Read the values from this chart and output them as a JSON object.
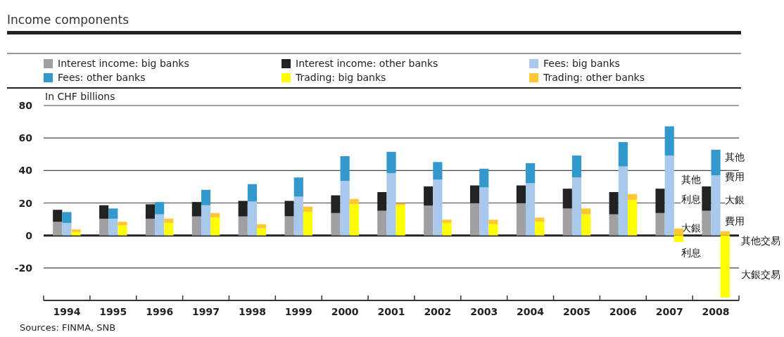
{
  "chart_data": [
    {
      "type": "bar",
      "title": "Income components",
      "ylabel": "In CHF billions",
      "grid": "y",
      "legend": "top",
      "stacked": true,
      "categories": [
        "1994",
        "1995",
        "1996",
        "1997",
        "1998",
        "1999",
        "2000",
        "2001",
        "2002",
        "2003",
        "2004",
        "2005",
        "2006",
        "2007",
        "2008"
      ],
      "ylim": [
        -40,
        80
      ],
      "yticks": [
        -20,
        0,
        20,
        40,
        60,
        80
      ],
      "series": [
        {
          "name": "Interest income: big banks",
          "color": "#a09fa4",
          "values": [
            8.4,
            10.3,
            10.3,
            11.7,
            11.7,
            11.8,
            13.8,
            15.2,
            18.4,
            19.9,
            19.9,
            16.6,
            13.0,
            13.8,
            15.2
          ]
        },
        {
          "name": "Interest income: other banks",
          "color": "#222222",
          "values": [
            7.4,
            8.3,
            8.9,
            8.9,
            9.6,
            9.5,
            10.9,
            11.5,
            11.8,
            10.9,
            10.9,
            12.2,
            13.7,
            15.0,
            15.0
          ]
        }
      ],
      "annotations": [
        "其他",
        "利息",
        "大銀",
        "利息",
        "其他",
        "費用",
        "大銀",
        "費用",
        "其他交易",
        "大銀交易",
        "Sources: FINMA, SNB"
      ]
    },
    {
      "type": "bar",
      "legend": "top",
      "stacked": true,
      "tick_labels": false,
      "categories": [
        "1994",
        "1995",
        "1996",
        "1997",
        "1998",
        "1999",
        "2000",
        "2001",
        "2002",
        "2003",
        "2004",
        "2005",
        "2006",
        "2007",
        "2008"
      ],
      "ylim": [
        -40,
        80
      ],
      "series": [
        {
          "name": "Fees: big banks",
          "color": "#a8c8ec",
          "values": [
            7.7,
            10.3,
            13.0,
            18.6,
            20.9,
            23.9,
            33.6,
            38.3,
            34.4,
            29.6,
            32.2,
            35.7,
            42.5,
            49.2,
            37.0
          ]
        },
        {
          "name": "Fees: other banks",
          "color": "#3399cc",
          "values": [
            6.7,
            6.3,
            7.6,
            9.5,
            10.7,
            11.8,
            15.2,
            13.2,
            10.8,
            11.5,
            12.3,
            13.5,
            15.0,
            18.0,
            15.8
          ]
        }
      ]
    },
    {
      "type": "bar",
      "legend": "top",
      "stacked": true,
      "tick_labels": false,
      "categories": [
        "1994",
        "1995",
        "1996",
        "1997",
        "1998",
        "1999",
        "2000",
        "2001",
        "2002",
        "2003",
        "2004",
        "2005",
        "2006",
        "2007",
        "2008"
      ],
      "ylim": [
        -40,
        80
      ],
      "series": [
        {
          "name": "Trading: big banks",
          "color": "#ffff00",
          "values": [
            2.1,
            6.1,
            7.7,
            11.0,
            4.3,
            14.6,
            19.2,
            18.6,
            7.7,
            6.9,
            8.3,
            13.0,
            21.9,
            -4.0,
            -38.2
          ]
        },
        {
          "name": "Trading: other banks",
          "color": "#ffc832",
          "values": [
            1.6,
            2.3,
            2.6,
            2.8,
            2.6,
            3.2,
            3.3,
            1.3,
            2.0,
            2.8,
            2.7,
            3.6,
            3.6,
            4.3,
            2.6
          ]
        }
      ]
    }
  ]
}
